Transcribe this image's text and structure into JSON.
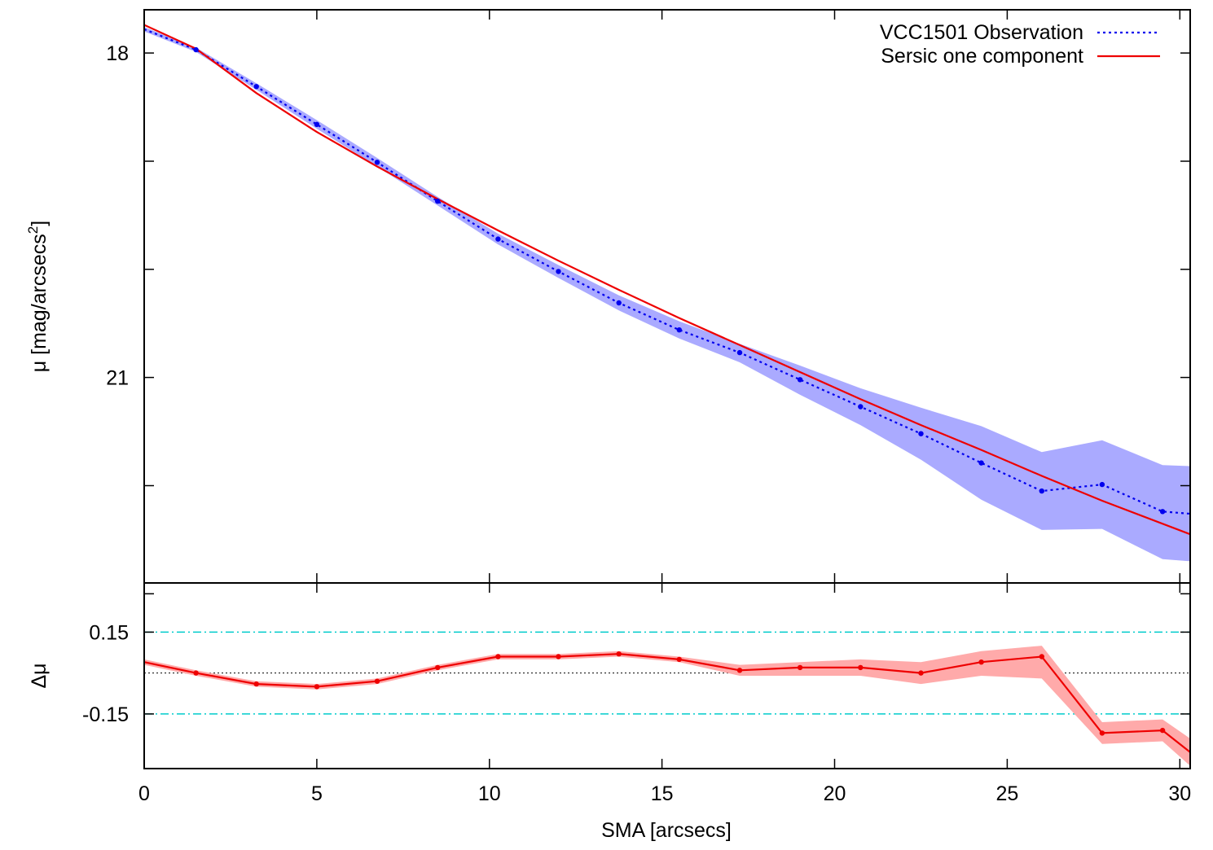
{
  "chart_data": [
    {
      "type": "line",
      "panel": "main",
      "ylabel": "μ [mag/arcsecs",
      "ylabel_superscript": "2",
      "ylabel_suffix": "]",
      "xlim": [
        0,
        30.3
      ],
      "ylim": [
        22.9,
        17.6
      ],
      "y_inverted": true,
      "y_ticks": [
        18,
        19,
        20,
        21,
        22,
        23
      ],
      "y_tick_labels": [
        "18",
        "",
        "",
        "21",
        "",
        ""
      ],
      "x_ticks": [
        0,
        5,
        10,
        15,
        20,
        25,
        30
      ],
      "grid": false,
      "legend_position": "top-right",
      "series": [
        {
          "name": "VCC1501 Observation",
          "style": "dotted",
          "color": "#0000ee",
          "band_color": "#aaaaff",
          "x": [
            0,
            1.5,
            3.25,
            5.0,
            6.75,
            8.5,
            10.25,
            12.0,
            13.75,
            15.5,
            17.25,
            19.0,
            20.75,
            22.5,
            24.25,
            26.0,
            27.75,
            29.5,
            30.3
          ],
          "values": [
            17.78,
            17.97,
            18.31,
            18.66,
            19.01,
            19.37,
            19.72,
            20.02,
            20.31,
            20.56,
            20.77,
            21.02,
            21.27,
            21.52,
            21.79,
            22.05,
            21.99,
            22.24,
            22.26
          ],
          "band_low": [
            17.76,
            17.95,
            18.28,
            18.62,
            18.97,
            19.33,
            19.67,
            19.96,
            20.24,
            20.48,
            20.69,
            20.89,
            21.1,
            21.28,
            21.45,
            21.69,
            21.58,
            21.81,
            21.82
          ],
          "band_high": [
            17.8,
            17.99,
            18.34,
            18.7,
            19.05,
            19.41,
            19.77,
            20.08,
            20.38,
            20.64,
            20.86,
            21.16,
            21.44,
            21.76,
            22.13,
            22.41,
            22.4,
            22.68,
            22.7
          ],
          "marker_x": [
            1.5,
            3.25,
            5.0,
            6.75,
            8.5,
            10.25,
            12.0,
            13.75,
            15.5,
            17.25,
            19.0,
            20.75,
            22.5,
            24.25,
            26.0,
            27.75,
            29.5
          ]
        },
        {
          "name": "Sersic one component",
          "style": "solid",
          "color": "#ee0000",
          "x": [
            0,
            1.5,
            3.25,
            5.0,
            6.75,
            8.5,
            10.25,
            12.0,
            13.75,
            15.5,
            17.25,
            19.0,
            20.75,
            22.5,
            24.25,
            26.0,
            27.75,
            30.3
          ],
          "values": [
            17.74,
            17.96,
            18.37,
            18.73,
            19.05,
            19.35,
            19.64,
            19.92,
            20.19,
            20.45,
            20.7,
            20.95,
            21.2,
            21.44,
            21.67,
            21.91,
            22.14,
            22.45
          ]
        }
      ]
    },
    {
      "type": "line",
      "panel": "residual",
      "xlabel": "SMA [arcsecs]",
      "ylabel": "Δμ",
      "xlim": [
        0,
        30.3
      ],
      "ylim": [
        -0.35,
        0.33
      ],
      "y_ticks": [
        0.15,
        -0.15
      ],
      "y_tick_labels": [
        "0.15",
        "-0.15"
      ],
      "x_ticks": [
        0,
        5,
        10,
        15,
        20,
        25,
        30
      ],
      "x_tick_labels": [
        "0",
        "5",
        "10",
        "15",
        "20",
        "25",
        "30"
      ],
      "reference_lines": [
        {
          "y": 0.15,
          "style": "dash-dot",
          "color": "#00cccc"
        },
        {
          "y": -0.15,
          "style": "dash-dot",
          "color": "#00cccc"
        },
        {
          "y": 0.0,
          "style": "dotted",
          "color": "#000000"
        }
      ],
      "series": [
        {
          "name": "",
          "color": "#ee0000",
          "band_color": "#ffaaaa",
          "x": [
            0,
            1.5,
            3.25,
            5.0,
            6.75,
            8.5,
            10.25,
            12.0,
            13.75,
            15.5,
            17.25,
            19.0,
            20.75,
            22.5,
            24.25,
            26.0,
            27.75,
            29.5,
            30.3
          ],
          "values": [
            0.04,
            0.0,
            -0.04,
            -0.05,
            -0.03,
            0.02,
            0.06,
            0.06,
            0.07,
            0.05,
            0.01,
            0.02,
            0.02,
            0.0,
            0.04,
            0.06,
            -0.22,
            -0.21,
            -0.29
          ],
          "band_low": [
            0.03,
            -0.01,
            -0.05,
            -0.06,
            -0.04,
            0.01,
            0.05,
            0.05,
            0.06,
            0.04,
            -0.01,
            -0.01,
            -0.01,
            -0.04,
            -0.01,
            -0.02,
            -0.26,
            -0.25,
            -0.34
          ],
          "band_high": [
            0.05,
            0.01,
            -0.03,
            -0.04,
            -0.02,
            0.03,
            0.07,
            0.07,
            0.08,
            0.06,
            0.03,
            0.04,
            0.05,
            0.04,
            0.08,
            0.1,
            -0.18,
            -0.17,
            -0.24
          ],
          "marker_x": [
            1.5,
            3.25,
            5.0,
            6.75,
            8.5,
            10.25,
            12.0,
            13.75,
            15.5,
            17.25,
            19.0,
            20.75,
            22.5,
            24.25,
            26.0,
            27.75,
            29.5
          ]
        }
      ]
    }
  ]
}
